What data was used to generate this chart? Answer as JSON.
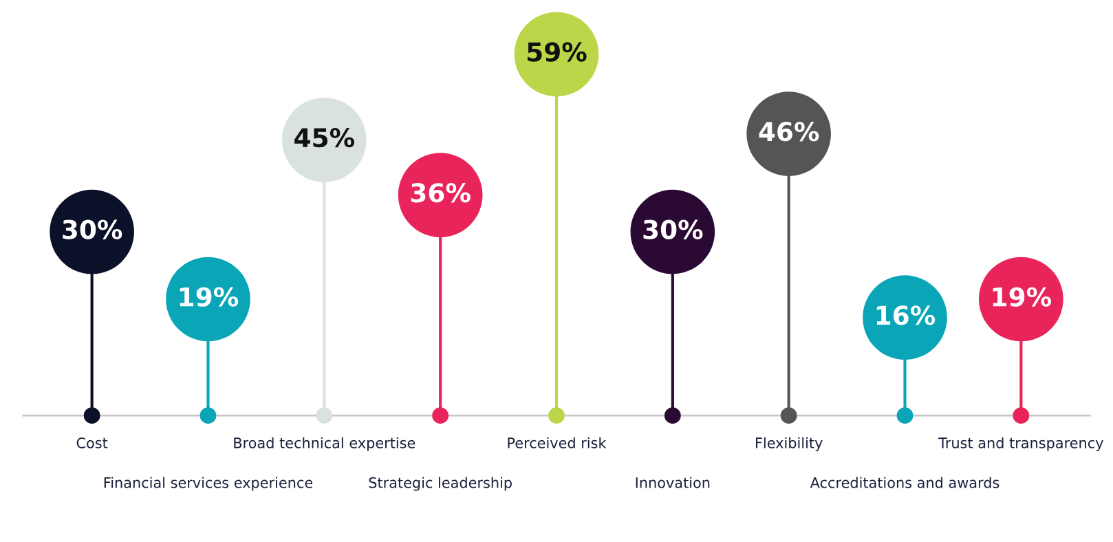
{
  "chart_data": {
    "type": "other",
    "categories": [
      "Cost",
      "Financial services experience",
      "Broad technical expertise",
      "Strategic leadership",
      "Perceived risk",
      "Innovation",
      "Flexibility",
      "Accreditations and awards",
      "Trust and transparency"
    ],
    "values": [
      30,
      19,
      45,
      36,
      59,
      30,
      46,
      16,
      19
    ],
    "colors": [
      "#0b1128",
      "#0aa6b8",
      "#d9e2e0",
      "#e8245a",
      "#bcd64a",
      "#2a0a33",
      "#545556",
      "#0aa6b8",
      "#e8245a"
    ],
    "value_labels": [
      "30%",
      "19%",
      "45%",
      "36%",
      "59%",
      "30%",
      "46%",
      "16%",
      "19%"
    ]
  }
}
